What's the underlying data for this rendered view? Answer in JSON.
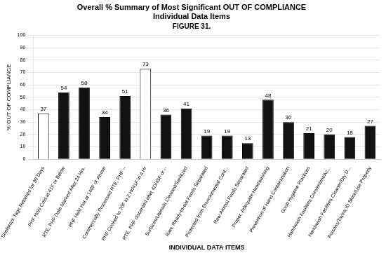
{
  "chart_data": {
    "type": "bar",
    "title": [
      "Overall % Summary of Most Significant OUT OF COMPLIANCE",
      "Individual Data Items"
    ],
    "subtitle": "FIGURE 31.",
    "xlabel": "INDIVIDUAL DATA ITEMS",
    "ylabel": "% OUT OF COMPLIANCE",
    "categories": [
      "Shellstock Tags Retained for 90 Days",
      "PHF Hold Cold at 41F or Below",
      "RTE, PHF Date Marked After 24 Hrs.",
      "PHF Held Hot at 140F or Above",
      "Commercially Processed RTE, PHF --",
      "PHF Cooked to 70F in 2 Hr/41F in 4 Hr",
      "RTE, PHF discarded after 4D/45F or --",
      "Surfaces/Utensils Cleaned/Sanitized",
      "Raw, Ready-to-eat Foods Separated",
      "Protected from Environmental Cont...",
      "Raw Animal Foods Separated",
      "Proper, Adequate Handwashing",
      "Prevention of Hand Contamination",
      "Good Hygiene Practices",
      "Handwash Facilities Convenient/Ac...",
      "Handwash Facilities Cleaner/Dry D...",
      "Poisons/Toxins ID Store/Use Properly"
    ],
    "values": [
      37,
      54,
      58,
      34,
      51,
      73,
      36,
      41,
      19,
      19,
      13,
      48,
      30,
      21,
      20,
      18,
      27
    ],
    "colors": [
      "#ffffff",
      "#111111",
      "#111111",
      "#111111",
      "#111111",
      "#ffffff",
      "#111111",
      "#111111",
      "#111111",
      "#111111",
      "#111111",
      "#111111",
      "#111111",
      "#111111",
      "#111111",
      "#111111",
      "#111111"
    ],
    "ylim": [
      0,
      100
    ],
    "yticks": [
      0,
      10,
      20,
      30,
      40,
      50,
      60,
      70,
      80,
      90,
      100
    ],
    "grid": true,
    "data_labels": true
  }
}
